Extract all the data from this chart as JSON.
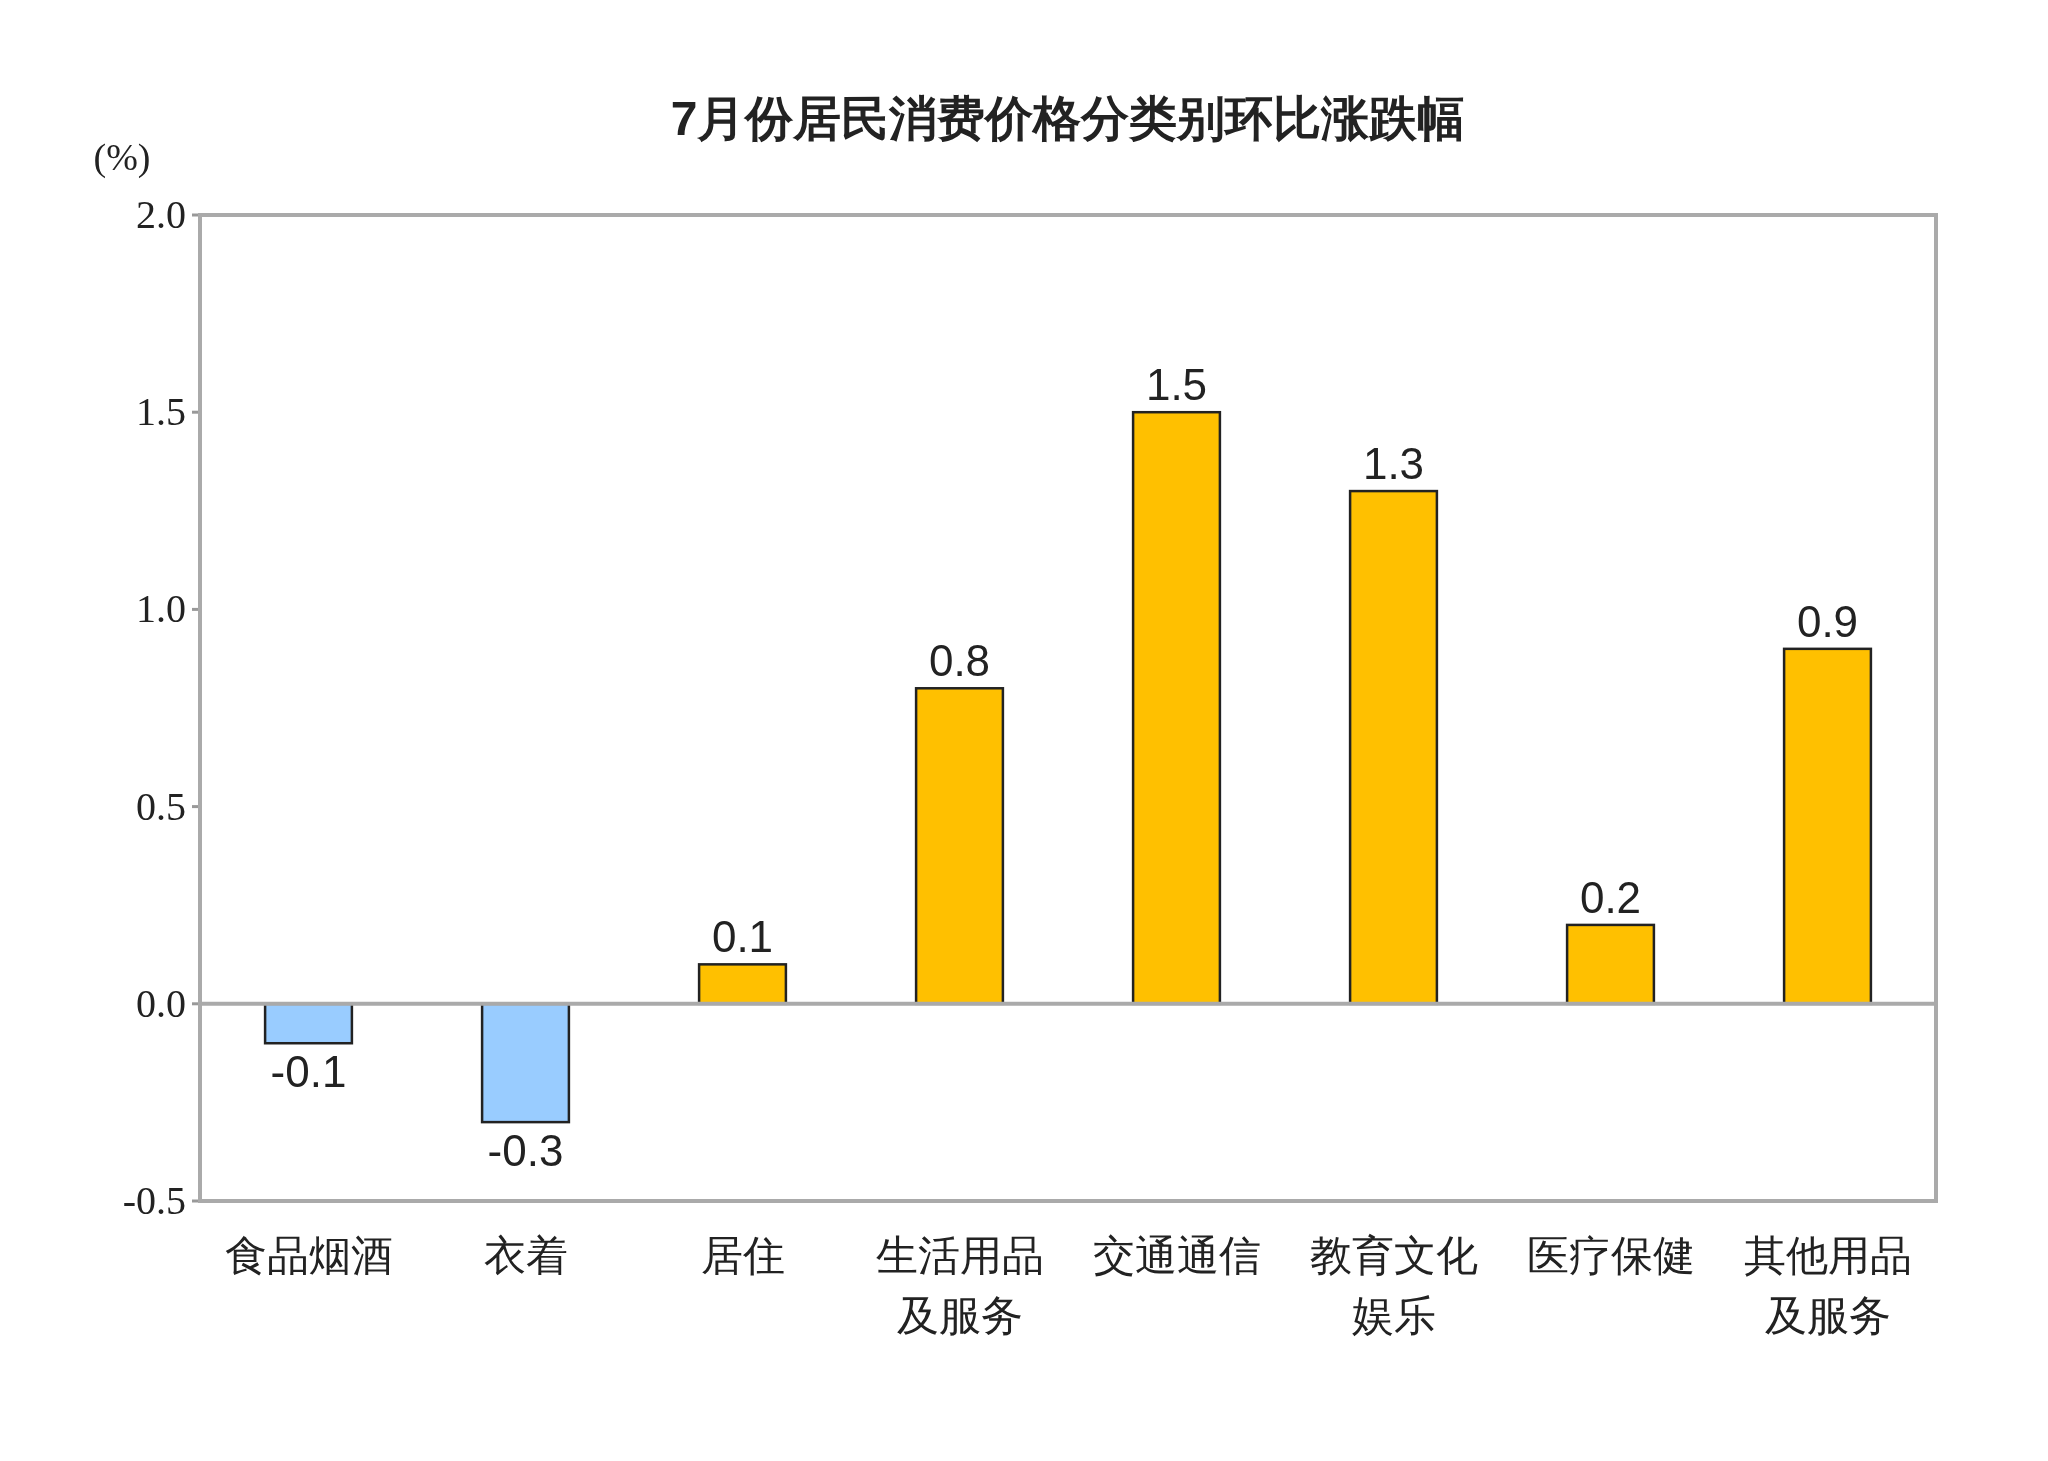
{
  "chart_data": {
    "type": "bar",
    "title": "7月份居民消费价格分类别环比涨跌幅",
    "ylabel": "(%)",
    "categories": [
      "食品烟酒",
      "衣着",
      "居住",
      "生活用品及服务",
      "交通通信",
      "教育文化娱乐",
      "医疗保健",
      "其他用品及服务"
    ],
    "values": [
      -0.1,
      -0.3,
      0.1,
      0.8,
      1.5,
      1.3,
      0.2,
      0.9
    ],
    "colors": [
      "#99ccff",
      "#99ccff",
      "#ffc000",
      "#ffc000",
      "#ffc000",
      "#ffc000",
      "#ffc000",
      "#ffc000"
    ],
    "ylim": [
      -0.5,
      2.0
    ],
    "yticks": [
      {
        "value": -0.5,
        "label": "-0.5"
      },
      {
        "value": 0,
        "label": "0.0"
      },
      {
        "value": 0.5,
        "label": "0.5"
      },
      {
        "value": 1,
        "label": "1.0"
      },
      {
        "value": 1.5,
        "label": "1.5"
      },
      {
        "value": 2,
        "label": "2.0"
      }
    ],
    "data_labels": true
  }
}
